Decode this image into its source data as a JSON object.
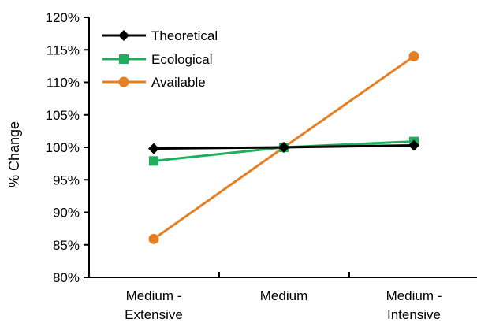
{
  "chart_data": {
    "type": "line",
    "title": "",
    "xlabel": "",
    "ylabel": "% Change",
    "categories": [
      [
        "Medium -",
        "Extensive"
      ],
      [
        "Medium"
      ],
      [
        "Medium -",
        "Intensive"
      ]
    ],
    "y_ticks": [
      "80%",
      "85%",
      "90%",
      "95%",
      "100%",
      "105%",
      "110%",
      "115%",
      "120%"
    ],
    "ylim": [
      80,
      120
    ],
    "grid": false,
    "legend_position": "top-left",
    "series": [
      {
        "name": "Theoretical",
        "values": [
          99.8,
          100.0,
          100.3
        ],
        "color": "#000000",
        "marker": "diamond"
      },
      {
        "name": "Ecological",
        "values": [
          97.9,
          100.0,
          100.9
        ],
        "color": "#1fae5c",
        "marker": "square"
      },
      {
        "name": "Available",
        "values": [
          85.9,
          100.0,
          114.0
        ],
        "color": "#e67e22",
        "marker": "circle"
      }
    ]
  }
}
